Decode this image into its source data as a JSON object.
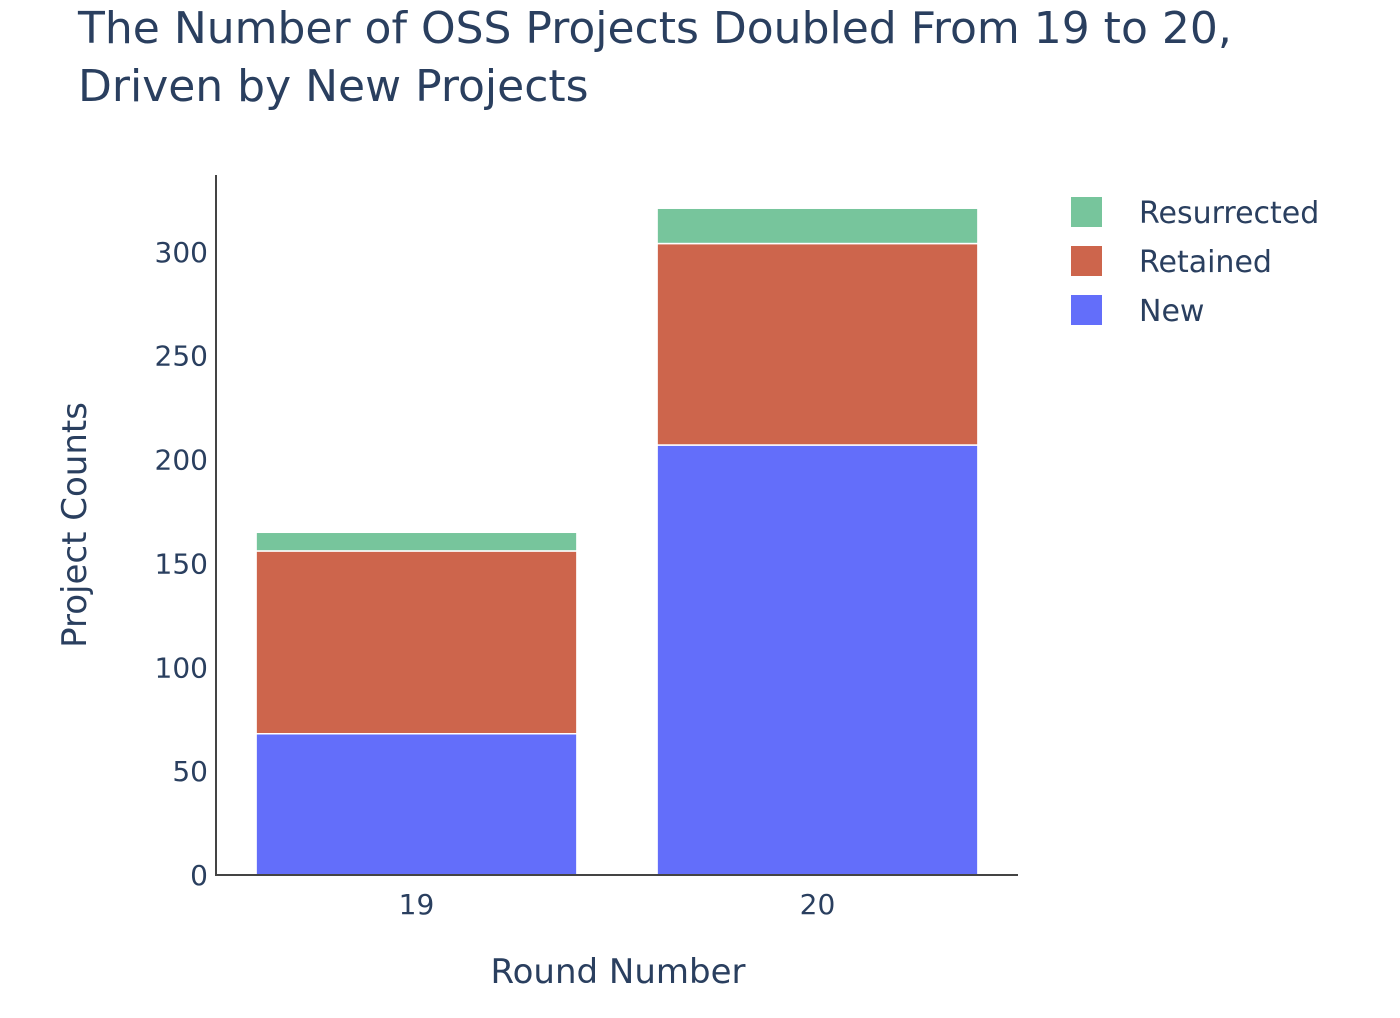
{
  "chart_data": {
    "type": "bar",
    "barmode": "stack",
    "title": "The Number of OSS Projects Doubled From 19 to 20, Driven by New Projects",
    "title_lines": [
      "The Number of OSS Projects Doubled From 19 to 20,",
      "Driven by New Projects"
    ],
    "xlabel": "Round Number",
    "ylabel": "Project Counts",
    "categories": [
      "19",
      "20"
    ],
    "ylim": [
      0,
      337
    ],
    "yticks": [
      0,
      50,
      100,
      150,
      200,
      250,
      300
    ],
    "grid": false,
    "legend_position": "top-right",
    "series": [
      {
        "name": "New",
        "color": "#636efa",
        "values": [
          68,
          207
        ]
      },
      {
        "name": "Retained",
        "color": "#cd654c",
        "values": [
          88,
          97
        ]
      },
      {
        "name": "Resurrected",
        "color": "#77c59c",
        "values": [
          9,
          17
        ]
      }
    ],
    "legend_order": [
      "Resurrected",
      "Retained",
      "New"
    ]
  }
}
